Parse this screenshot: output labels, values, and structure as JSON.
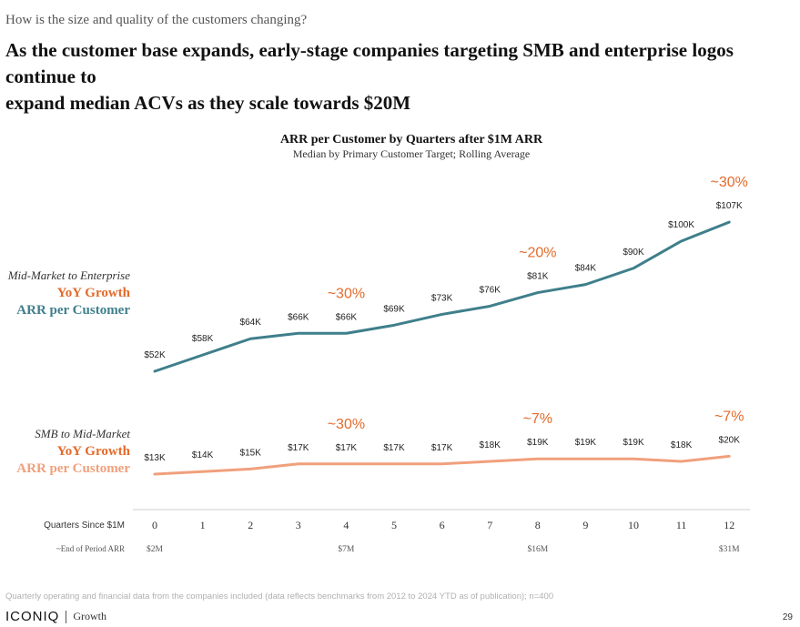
{
  "header": {
    "question": "How is the size and quality of the customers changing?",
    "headline_line1": "As the customer base expands, early-stage companies targeting SMB and enterprise logos continue to",
    "headline_line2": "expand median ACVs as they scale towards $20M"
  },
  "chart_data": {
    "type": "line",
    "title": "ARR per Customer by Quarters after $1M ARR",
    "subtitle": "Median by Primary Customer Target; Rolling Average",
    "x": [
      0,
      1,
      2,
      3,
      4,
      5,
      6,
      7,
      8,
      9,
      10,
      11,
      12
    ],
    "xlabel": "Quarters Since $1M",
    "secondary_axis_label": "~End of Period ARR",
    "secondary_axis_ticks": [
      {
        "quarter": 0,
        "label": "$2M"
      },
      {
        "quarter": 4,
        "label": "$7M"
      },
      {
        "quarter": 8,
        "label": "$16M"
      },
      {
        "quarter": 12,
        "label": "$31M"
      }
    ],
    "series": [
      {
        "name": "Mid-Market to Enterprise",
        "label_line2": "YoY Growth",
        "label_line3": "ARR per Customer",
        "color": "#3f7f8b",
        "values": [
          52,
          58,
          64,
          66,
          66,
          69,
          73,
          76,
          81,
          84,
          90,
          100,
          107
        ],
        "value_labels": [
          "$52K",
          "$58K",
          "$64K",
          "$66K",
          "$66K",
          "$69K",
          "$73K",
          "$76K",
          "$81K",
          "$84K",
          "$90K",
          "$100K",
          "$107K"
        ],
        "growth_annotations": [
          {
            "quarter": 4,
            "label": "~30%"
          },
          {
            "quarter": 8,
            "label": "~20%"
          },
          {
            "quarter": 12,
            "label": "~30%"
          }
        ]
      },
      {
        "name": "SMB to Mid-Market",
        "label_line2": "YoY Growth",
        "label_line3": "ARR per Customer",
        "color": "#f0a07c",
        "values": [
          13,
          14,
          15,
          17,
          17,
          17,
          17,
          18,
          19,
          19,
          19,
          18,
          20
        ],
        "value_labels": [
          "$13K",
          "$14K",
          "$15K",
          "$17K",
          "$17K",
          "$17K",
          "$17K",
          "$18K",
          "$19K",
          "$19K",
          "$19K",
          "$18K",
          "$20K"
        ],
        "growth_annotations": [
          {
            "quarter": 4,
            "label": "~30%"
          },
          {
            "quarter": 8,
            "label": "~7%"
          },
          {
            "quarter": 12,
            "label": "~7%"
          }
        ]
      }
    ],
    "growth_color": "#e46a2a"
  },
  "footer": {
    "footnote": "Quarterly operating and financial data from the companies included (data reflects benchmarks from 2012 to 2024 YTD as of publication); n=400",
    "brand": "ICONIQ",
    "brand_sub": "Growth",
    "page_number": "29"
  }
}
